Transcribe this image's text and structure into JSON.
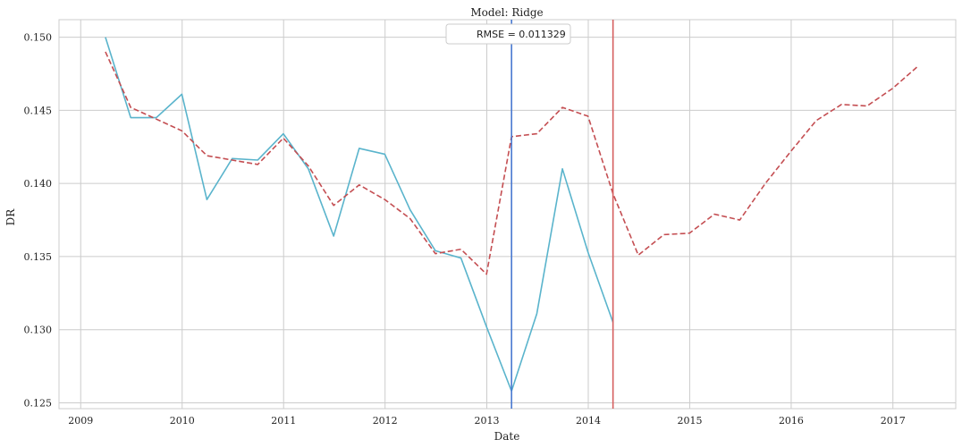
{
  "chart_data": {
    "type": "line",
    "title": "Model: Ridge",
    "xlabel": "Date",
    "ylabel": "DR",
    "xlim": [
      "2008-10-15",
      "2017-08-15"
    ],
    "ylim": [
      0.1246,
      0.1512
    ],
    "x_ticks": [
      "2009",
      "2010",
      "2011",
      "2012",
      "2013",
      "2014",
      "2015",
      "2016",
      "2017"
    ],
    "y_ticks": [
      "0.125",
      "0.130",
      "0.135",
      "0.140",
      "0.145",
      "0.150"
    ],
    "grid": true,
    "legend": {
      "text": "RMSE = 0.011329",
      "placement": "top-center"
    },
    "series": [
      {
        "style": "solid",
        "color": "#5ab4cc",
        "x": [
          "2009-03-31",
          "2009-06-30",
          "2009-09-30",
          "2009-12-31",
          "2010-03-31",
          "2010-06-30",
          "2010-09-30",
          "2010-12-31",
          "2011-03-31",
          "2011-06-30",
          "2011-09-30",
          "2011-12-31",
          "2012-03-31",
          "2012-06-30",
          "2012-09-30",
          "2012-12-31",
          "2013-03-31",
          "2013-06-30",
          "2013-09-30",
          "2013-12-31",
          "2014-03-31"
        ],
        "values": [
          0.15,
          0.1445,
          0.1445,
          0.1461,
          0.1389,
          0.1417,
          0.1416,
          0.1434,
          0.141,
          0.1364,
          0.1424,
          0.142,
          0.1382,
          0.1354,
          0.1349,
          0.1302,
          0.1258,
          0.1311,
          0.141,
          0.1353,
          0.1305
        ]
      },
      {
        "style": "dashed",
        "color": "#c44e52",
        "x": [
          "2009-03-31",
          "2009-06-30",
          "2009-09-30",
          "2009-12-31",
          "2010-03-31",
          "2010-06-30",
          "2010-09-30",
          "2010-12-31",
          "2011-03-31",
          "2011-06-30",
          "2011-09-30",
          "2011-12-31",
          "2012-03-31",
          "2012-06-30",
          "2012-09-30",
          "2012-12-31",
          "2013-03-31",
          "2013-06-30",
          "2013-09-30",
          "2013-12-31",
          "2014-03-31",
          "2014-06-30",
          "2014-09-30",
          "2014-12-31",
          "2015-03-31",
          "2015-06-30",
          "2015-09-30",
          "2015-12-31",
          "2016-03-31",
          "2016-06-30",
          "2016-09-30",
          "2016-12-31",
          "2017-03-31"
        ],
        "values": [
          0.149,
          0.1452,
          0.1444,
          0.1436,
          0.1419,
          0.1416,
          0.1413,
          0.1431,
          0.1412,
          0.1385,
          0.1399,
          0.1389,
          0.1376,
          0.1352,
          0.1355,
          0.1338,
          0.1432,
          0.1434,
          0.1452,
          0.1446,
          0.1393,
          0.1351,
          0.1365,
          0.1366,
          0.1379,
          0.1375,
          0.14,
          0.1422,
          0.1443,
          0.1454,
          0.1453,
          0.1465,
          0.148
        ]
      }
    ],
    "vlines": [
      {
        "x": "2013-03-31",
        "color": "#4878d0"
      },
      {
        "x": "2014-03-31",
        "color": "#d65f5f"
      }
    ]
  }
}
